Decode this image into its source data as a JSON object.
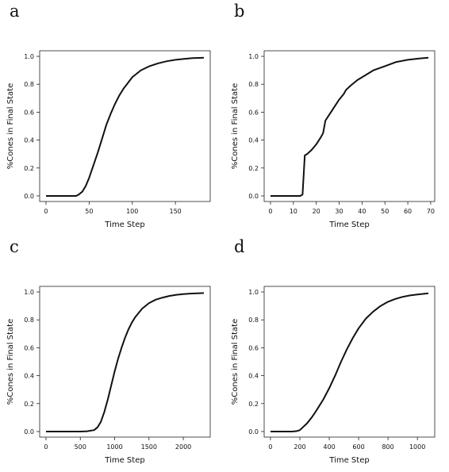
{
  "chart_data": [
    {
      "panel_label": "a",
      "type": "line",
      "xlabel": "Time Step",
      "ylabel": "%Cones in Final State",
      "xlim": [
        0,
        183
      ],
      "ylim": [
        0,
        1.0
      ],
      "xticks": [
        0,
        50,
        100,
        150
      ],
      "yticks": [
        0.0,
        0.2,
        0.4,
        0.6,
        0.8,
        1.0
      ],
      "grid": false,
      "x": [
        0,
        30,
        35,
        38,
        42,
        46,
        50,
        55,
        60,
        65,
        70,
        75,
        80,
        85,
        90,
        95,
        100,
        110,
        120,
        130,
        140,
        150,
        160,
        170,
        183
      ],
      "y": [
        0.0,
        0.0,
        0.0,
        0.01,
        0.03,
        0.07,
        0.13,
        0.22,
        0.31,
        0.41,
        0.51,
        0.59,
        0.66,
        0.72,
        0.77,
        0.81,
        0.85,
        0.9,
        0.93,
        0.95,
        0.965,
        0.975,
        0.982,
        0.987,
        0.99
      ]
    },
    {
      "panel_label": "b",
      "type": "line",
      "xlabel": "Time Step",
      "ylabel": "%Cones in Final State",
      "xlim": [
        0,
        69
      ],
      "ylim": [
        0,
        1.0
      ],
      "xticks": [
        0,
        10,
        20,
        30,
        40,
        50,
        60,
        70
      ],
      "yticks": [
        0.0,
        0.2,
        0.4,
        0.6,
        0.8,
        1.0
      ],
      "grid": false,
      "x": [
        0,
        13,
        14,
        14.5,
        15,
        16,
        18,
        20,
        22,
        23,
        24,
        26,
        28,
        30,
        32,
        33,
        35,
        38,
        40,
        42,
        45,
        50,
        55,
        60,
        65,
        69
      ],
      "y": [
        0.0,
        0.0,
        0.01,
        0.15,
        0.29,
        0.3,
        0.33,
        0.37,
        0.42,
        0.45,
        0.54,
        0.59,
        0.64,
        0.69,
        0.73,
        0.76,
        0.79,
        0.83,
        0.85,
        0.87,
        0.9,
        0.93,
        0.96,
        0.975,
        0.985,
        0.99
      ]
    },
    {
      "panel_label": "c",
      "type": "line",
      "xlabel": "Time Step",
      "ylabel": "%Cones in Final State",
      "xlim": [
        0,
        2300
      ],
      "ylim": [
        0,
        1.0
      ],
      "xticks": [
        0,
        500,
        1000,
        1500,
        2000
      ],
      "yticks": [
        0.0,
        0.2,
        0.4,
        0.6,
        0.8,
        1.0
      ],
      "grid": false,
      "x": [
        0,
        500,
        600,
        700,
        750,
        800,
        850,
        900,
        950,
        1000,
        1050,
        1100,
        1150,
        1200,
        1250,
        1300,
        1400,
        1500,
        1600,
        1700,
        1800,
        1900,
        2000,
        2100,
        2200,
        2300
      ],
      "y": [
        0.0,
        0.0,
        0.002,
        0.01,
        0.03,
        0.07,
        0.14,
        0.23,
        0.33,
        0.43,
        0.52,
        0.6,
        0.67,
        0.73,
        0.78,
        0.82,
        0.88,
        0.92,
        0.945,
        0.96,
        0.972,
        0.98,
        0.985,
        0.988,
        0.99,
        0.992
      ]
    },
    {
      "panel_label": "d",
      "type": "line",
      "xlabel": "Time Step",
      "ylabel": "%Cones in Final State",
      "xlim": [
        0,
        1075
      ],
      "ylim": [
        0,
        1.0
      ],
      "xticks": [
        0,
        200,
        400,
        600,
        800,
        1000
      ],
      "yticks": [
        0.0,
        0.2,
        0.4,
        0.6,
        0.8,
        1.0
      ],
      "grid": false,
      "x": [
        0,
        150,
        180,
        200,
        220,
        250,
        280,
        300,
        330,
        360,
        400,
        440,
        480,
        520,
        560,
        600,
        650,
        700,
        750,
        800,
        850,
        900,
        950,
        1000,
        1075
      ],
      "y": [
        0.0,
        0.0,
        0.003,
        0.01,
        0.03,
        0.06,
        0.1,
        0.13,
        0.18,
        0.23,
        0.31,
        0.4,
        0.5,
        0.59,
        0.67,
        0.74,
        0.81,
        0.86,
        0.9,
        0.93,
        0.95,
        0.965,
        0.975,
        0.982,
        0.99
      ]
    }
  ]
}
